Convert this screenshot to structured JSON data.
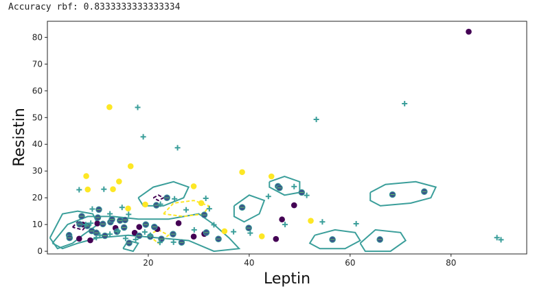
{
  "output_text": "Accuracy rbf: 0.8333333333333334",
  "chart_data": {
    "type": "scatter",
    "title": "",
    "xlabel": "Leptin",
    "ylabel": "Resistin",
    "xlim": [
      0,
      95
    ],
    "ylim": [
      -1,
      86
    ],
    "xticks": [
      "20",
      "40",
      "60",
      "80"
    ],
    "yticks": [
      "0",
      "10",
      "20",
      "30",
      "40",
      "50",
      "60",
      "70",
      "80"
    ],
    "class_colors": {
      "class_0": "#440154",
      "class_1": "#fde725",
      "contour_teal": "#3a9e9a",
      "test_marker": "#3b528b",
      "plus_marker": "#3a9e9a"
    },
    "series": [
      {
        "name": "",
        "color": "#440154",
        "points": [
          [
            83.5,
            82.1
          ],
          [
            48.9,
            17.2
          ],
          [
            46.5,
            11.9
          ],
          [
            45.3,
            4.6
          ],
          [
            29.0,
            5.5
          ],
          [
            21.8,
            8.3
          ],
          [
            13.5,
            8.7
          ],
          [
            8.5,
            4.1
          ],
          [
            7.0,
            10.0
          ],
          [
            6.3,
            4.7
          ],
          [
            9.9,
            10.4
          ],
          [
            17.3,
            6.9
          ],
          [
            26.0,
            10.5
          ],
          [
            18.2,
            9.1
          ],
          [
            31.1,
            6.5
          ]
        ]
      },
      {
        "name": "",
        "color": "#fde725",
        "points": [
          [
            12.3,
            53.9
          ],
          [
            7.7,
            28.1
          ],
          [
            14.2,
            26.1
          ],
          [
            16.5,
            31.8
          ],
          [
            8.0,
            23.1
          ],
          [
            13.0,
            23.2
          ],
          [
            38.6,
            29.6
          ],
          [
            29.0,
            24.3
          ],
          [
            35.1,
            7.5
          ],
          [
            42.5,
            5.6
          ],
          [
            16.0,
            16.0
          ],
          [
            19.4,
            17.5
          ],
          [
            52.2,
            11.4
          ],
          [
            44.4,
            28.0
          ],
          [
            30.5,
            18.0
          ]
        ]
      },
      {
        "name": "",
        "color": "#3b528b",
        "marker": "circle-outline-plus",
        "points": [
          [
            4.3,
            6.0
          ],
          [
            4.4,
            5.0
          ],
          [
            6.8,
            13.1
          ],
          [
            6.4,
            10.1
          ],
          [
            7.9,
            9.5
          ],
          [
            8.8,
            7.6
          ],
          [
            10.0,
            12.6
          ],
          [
            10.2,
            15.6
          ],
          [
            11.0,
            10.2
          ],
          [
            12.5,
            10.9
          ],
          [
            12.8,
            11.9
          ],
          [
            13.8,
            7.3
          ],
          [
            14.4,
            11.5
          ],
          [
            15.2,
            8.9
          ],
          [
            15.4,
            11.7
          ],
          [
            16.2,
            3.1
          ],
          [
            18.2,
            5.8
          ],
          [
            19.5,
            10.0
          ],
          [
            20.4,
            5.5
          ],
          [
            21.6,
            17.2
          ],
          [
            22.6,
            4.6
          ],
          [
            23.7,
            20.0
          ],
          [
            24.9,
            6.4
          ],
          [
            26.6,
            3.3
          ],
          [
            31.1,
            13.6
          ],
          [
            38.6,
            16.4
          ],
          [
            39.9,
            8.7
          ],
          [
            45.7,
            24.3
          ],
          [
            46.0,
            23.7
          ],
          [
            50.4,
            22.0
          ],
          [
            56.5,
            4.4
          ],
          [
            65.9,
            4.4
          ],
          [
            68.4,
            21.2
          ],
          [
            74.7,
            22.3
          ],
          [
            21.2,
            9.1
          ],
          [
            31.5,
            7.0
          ],
          [
            33.9,
            4.6
          ],
          [
            9.7,
            6.9
          ],
          [
            11.4,
            5.8
          ]
        ]
      },
      {
        "name": "",
        "color": "#3a9e9a",
        "marker": "plus",
        "points": [
          [
            17.9,
            53.8
          ],
          [
            19.0,
            42.8
          ],
          [
            25.8,
            38.7
          ],
          [
            53.3,
            49.3
          ],
          [
            70.8,
            55.2
          ],
          [
            6.3,
            23.0
          ],
          [
            8.9,
            15.8
          ],
          [
            11.2,
            23.2
          ],
          [
            14.8,
            16.4
          ],
          [
            16.1,
            13.8
          ],
          [
            12.4,
            14.0
          ],
          [
            22.4,
            17.6
          ],
          [
            25.2,
            19.6
          ],
          [
            32.1,
            15.9
          ],
          [
            33.0,
            9.9
          ],
          [
            40.2,
            6.8
          ],
          [
            43.8,
            20.5
          ],
          [
            47.1,
            10.0
          ],
          [
            48.9,
            24.2
          ],
          [
            51.4,
            20.9
          ],
          [
            54.5,
            11.0
          ],
          [
            61.2,
            10.3
          ],
          [
            89.1,
            5.1
          ],
          [
            89.9,
            4.3
          ],
          [
            7.6,
            10.0
          ],
          [
            8.6,
            10.5
          ],
          [
            9.7,
            5.1
          ],
          [
            10.4,
            6.0
          ],
          [
            12.4,
            6.4
          ],
          [
            14.0,
            7.6
          ],
          [
            15.5,
            4.8
          ],
          [
            17.5,
            4.4
          ],
          [
            19.3,
            7.2
          ],
          [
            20.4,
            6.0
          ],
          [
            22.3,
            3.3
          ],
          [
            25.0,
            3.4
          ],
          [
            27.5,
            15.5
          ],
          [
            29.1,
            8.0
          ],
          [
            31.4,
            19.8
          ],
          [
            36.9,
            7.3
          ]
        ]
      }
    ]
  }
}
